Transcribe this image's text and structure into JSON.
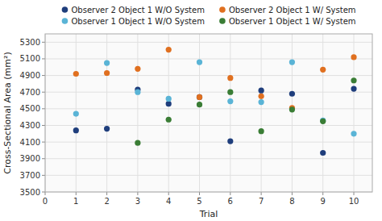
{
  "chart_data": {
    "type": "scatter",
    "xlabel": "Trial",
    "ylabel": "Cross-Sectional Area (mm²)",
    "series": [
      {
        "name": "Observer 2 Object 1 W/O System",
        "color": "#1f3e7c",
        "x": [
          1,
          2,
          3,
          4,
          5,
          6,
          7,
          8,
          9,
          10
        ],
        "values": [
          4240,
          4260,
          4730,
          4560,
          4640,
          4110,
          4720,
          4680,
          3970,
          4740
        ]
      },
      {
        "name": "Observer 2 Object 1 W/ System",
        "color": "#e07020",
        "x": [
          1,
          2,
          3,
          4,
          5,
          6,
          7,
          8,
          9,
          10
        ],
        "values": [
          4920,
          4930,
          4980,
          5210,
          4640,
          4870,
          4650,
          4510,
          4970,
          5120
        ]
      },
      {
        "name": "Observer 1 Object 1 W/O System",
        "color": "#5ab4d6",
        "x": [
          1,
          2,
          3,
          4,
          5,
          6,
          7,
          8,
          9,
          10
        ],
        "values": [
          4440,
          5050,
          4700,
          4620,
          5060,
          4590,
          4580,
          5060,
          4360,
          4200
        ]
      },
      {
        "name": "Observer 1 Object 1 W/ System",
        "color": "#3a7d35",
        "x": [
          3,
          4,
          5,
          6,
          7,
          8,
          9,
          10
        ],
        "values": [
          4090,
          4370,
          4550,
          4700,
          4230,
          4490,
          4350,
          4840
        ]
      }
    ],
    "xlim": [
      0,
      10.6
    ],
    "ylim": [
      3500,
      5400
    ],
    "xticks": [
      0,
      1,
      2,
      3,
      4,
      5,
      6,
      7,
      8,
      9,
      10
    ],
    "yticks": [
      3500,
      3700,
      3900,
      4100,
      4300,
      4500,
      4700,
      4900,
      5100,
      5300
    ],
    "grid": true,
    "legend": "top"
  }
}
